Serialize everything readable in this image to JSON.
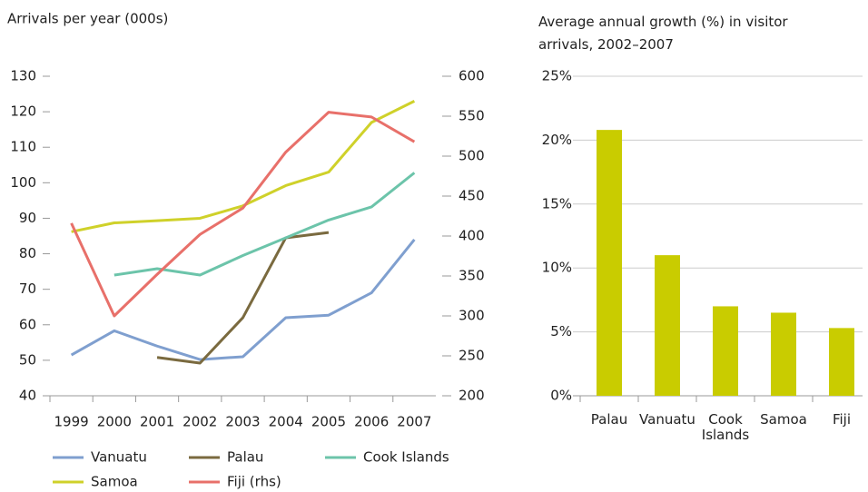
{
  "chart_data": [
    {
      "type": "line",
      "title": "Arrivals per year (000s)",
      "categories": [
        "1999",
        "2000",
        "2001",
        "2002",
        "2003",
        "2004",
        "2005",
        "2006",
        "2007"
      ],
      "series": [
        {
          "name": "Vanuatu",
          "color": "#7f9fcf",
          "values": [
            51.5,
            58.3,
            54,
            50.2,
            51,
            62,
            62.7,
            69,
            84
          ]
        },
        {
          "name": "Palau",
          "color": "#7a6a3f",
          "values": [
            null,
            null,
            50.8,
            49.2,
            62,
            84.5,
            86,
            null,
            null
          ]
        },
        {
          "name": "Cook Islands",
          "color": "#6cc4aa",
          "values": [
            null,
            74,
            75.8,
            74,
            79.5,
            84.5,
            89.5,
            93.2,
            102.8
          ]
        },
        {
          "name": "Samoa",
          "color": "#cfd12a",
          "values": [
            86.2,
            88.7,
            89.3,
            90,
            93.5,
            99.2,
            103,
            117,
            123
          ]
        },
        {
          "name": "Fiji (rhs)",
          "color": "#e8706a",
          "axis": "y2",
          "values": [
            416,
            300,
            352,
            402,
            435,
            505,
            555,
            549,
            518
          ]
        }
      ],
      "ylim": [
        40,
        130
      ],
      "yticks": [
        40,
        50,
        60,
        70,
        80,
        90,
        100,
        110,
        120,
        130
      ],
      "y2lim": [
        200,
        600
      ],
      "y2ticks": [
        200,
        250,
        300,
        350,
        400,
        450,
        500,
        550,
        600
      ],
      "legend": "bottom"
    },
    {
      "type": "bar",
      "title": "Average annual growth (%) in visitor arrivals, 2002–2007",
      "categories": [
        "Palau",
        "Vanuatu",
        "Cook Islands",
        "Samoa",
        "Fiji"
      ],
      "values": [
        20.8,
        11,
        7,
        6.5,
        5.3
      ],
      "color": "#c9cc00",
      "ylim": [
        0,
        25
      ],
      "yticks": [
        {
          "value": 0,
          "label": "0%"
        },
        {
          "value": 5,
          "label": "5%"
        },
        {
          "value": 10,
          "label": "10%"
        },
        {
          "value": 15,
          "label": "15%"
        },
        {
          "value": 20,
          "label": "20%"
        },
        {
          "value": 25,
          "label": "25%"
        }
      ],
      "grid": true
    }
  ]
}
